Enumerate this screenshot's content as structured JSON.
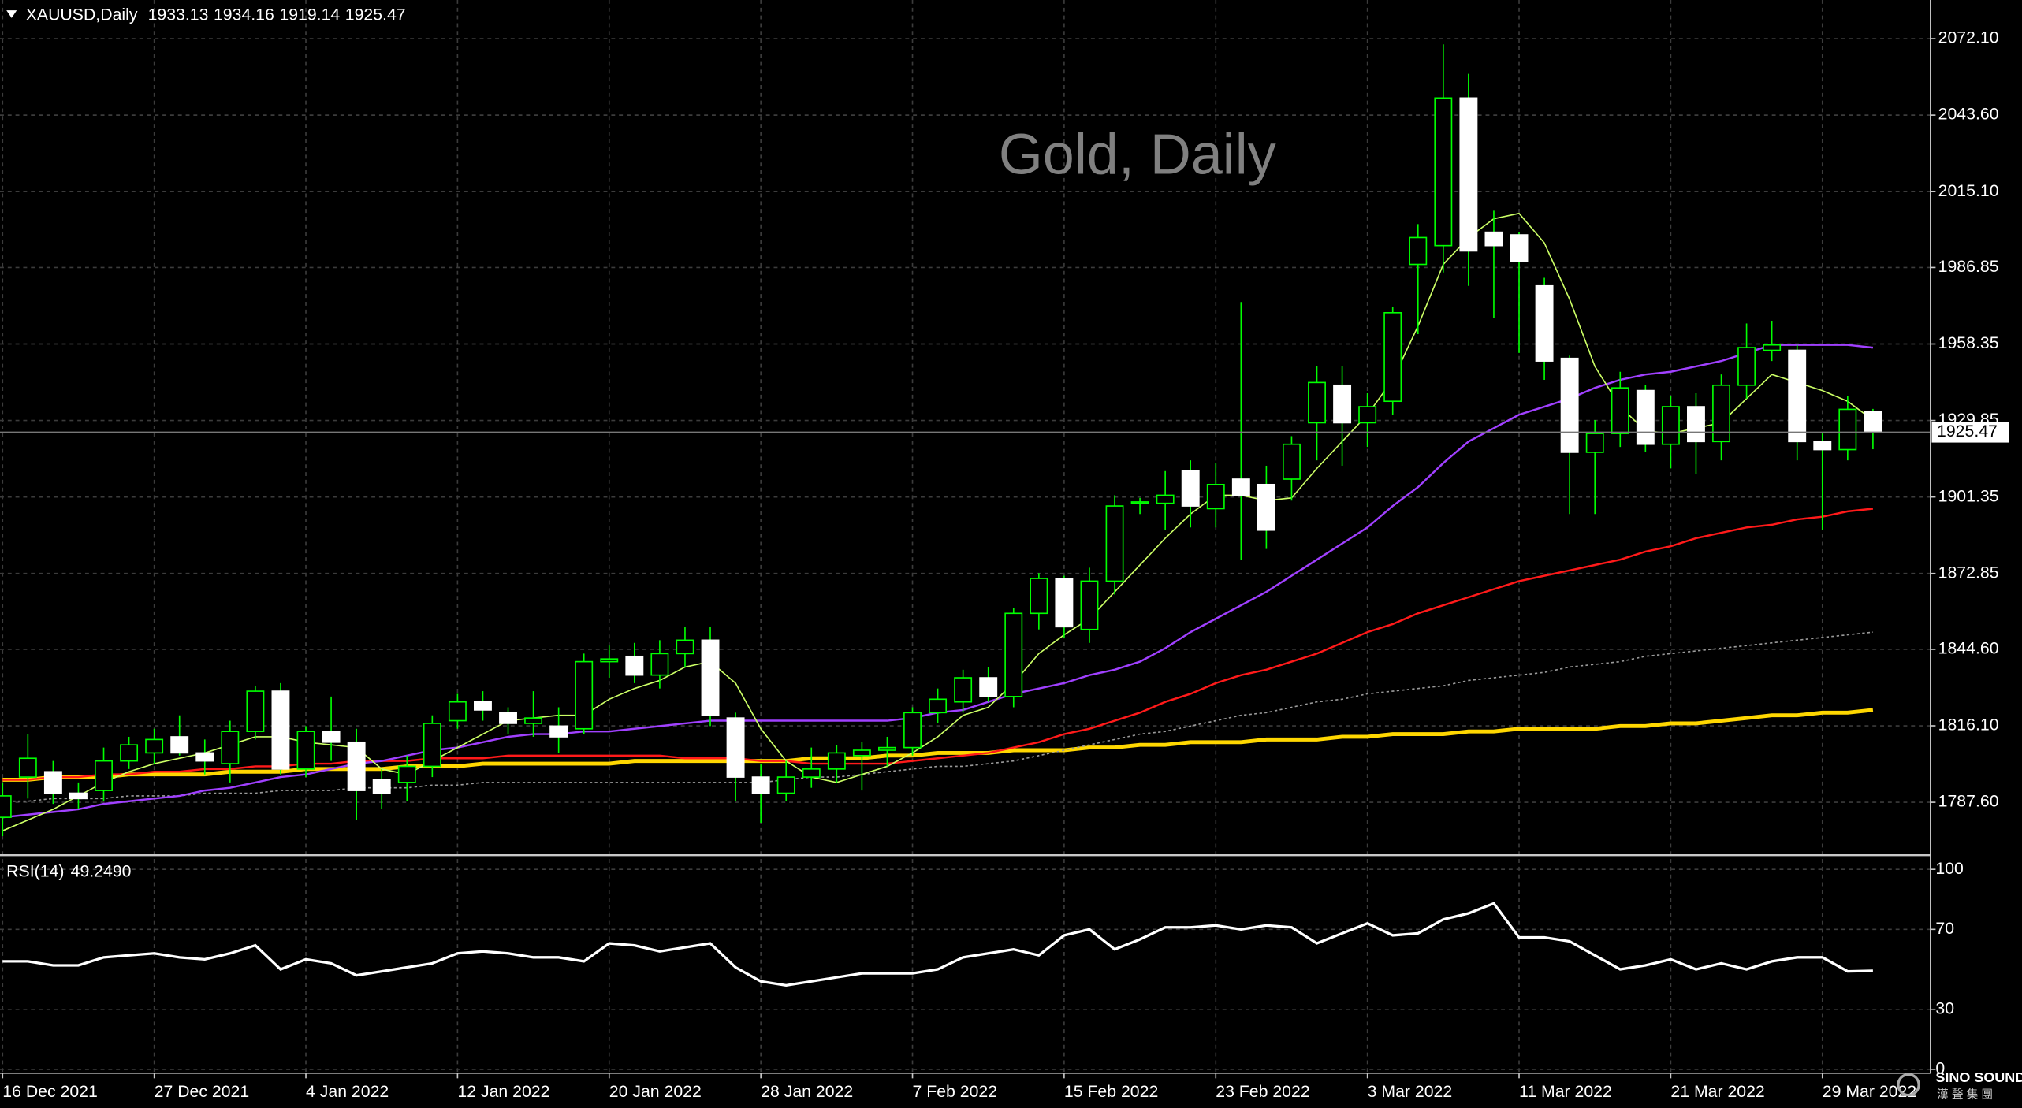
{
  "chart_data": {
    "type": "candlestick",
    "symbol": "XAUUSD,Daily",
    "title": "Gold, Daily",
    "categories": [
      "16 Dec 2021",
      null,
      null,
      null,
      null,
      null,
      "27 Dec 2021",
      null,
      null,
      null,
      null,
      null,
      "4 Jan 2022",
      null,
      null,
      null,
      null,
      null,
      "12 Jan 2022",
      null,
      null,
      null,
      null,
      null,
      "20 Jan 2022",
      null,
      null,
      null,
      null,
      null,
      "28 Jan 2022",
      null,
      null,
      null,
      null,
      null,
      "7 Feb 2022",
      null,
      null,
      null,
      null,
      null,
      "15 Feb 2022",
      null,
      null,
      null,
      null,
      null,
      "23 Feb 2022",
      null,
      null,
      null,
      null,
      null,
      "3 Mar 2022",
      null,
      null,
      null,
      null,
      null,
      "11 Mar 2022",
      null,
      null,
      null,
      null,
      null,
      "21 Mar 2022",
      null,
      null,
      null,
      null,
      null,
      "29 Mar 2022",
      null,
      null
    ],
    "open": [
      1782,
      1797,
      1799,
      1791,
      1792,
      1803,
      1806,
      1812,
      1806,
      1802,
      1814,
      1829,
      1800,
      1814,
      1810,
      1796,
      1795,
      1801,
      1818,
      1825,
      1821,
      1817,
      1816,
      1815,
      1840,
      1842,
      1835,
      1843,
      1848,
      1819,
      1797,
      1791,
      1797,
      1800,
      1805,
      1807,
      1808,
      1821,
      1825,
      1834,
      1827,
      1858,
      1871,
      1852,
      1870,
      1899,
      1899,
      1911,
      1897,
      1908,
      1906,
      1908,
      1929,
      1943,
      1929,
      1937,
      1988,
      1995,
      2050,
      2000,
      1999,
      1980,
      1953,
      1918,
      1925,
      1941,
      1921,
      1935,
      1922,
      1943,
      1956,
      1956,
      1922,
      1919,
      1933.13
    ],
    "high": [
      1795,
      1813,
      1803,
      1795,
      1808,
      1812,
      1815,
      1820,
      1811,
      1818,
      1831,
      1832,
      1816,
      1827,
      1815,
      1800,
      1805,
      1820,
      1828,
      1829,
      1823,
      1829,
      1823,
      1843,
      1846,
      1847,
      1848,
      1853,
      1853,
      1821,
      1802,
      1803,
      1808,
      1809,
      1810,
      1812,
      1823,
      1830,
      1837,
      1838,
      1860,
      1873,
      1872,
      1875,
      1902,
      1901,
      1911,
      1915,
      1914,
      1974,
      1913,
      1924,
      1950,
      1950,
      1940,
      1972,
      2003,
      2070,
      2059,
      2008,
      2000,
      1983,
      1954,
      1930,
      1948,
      1943,
      1939,
      1940,
      1947,
      1966,
      1967,
      1958,
      1925,
      1939,
      1934.16
    ],
    "low": [
      1775,
      1789,
      1787,
      1785,
      1788,
      1800,
      1802,
      1805,
      1798,
      1795,
      1811,
      1798,
      1797,
      1803,
      1781,
      1785,
      1788,
      1797,
      1815,
      1818,
      1813,
      1812,
      1806,
      1813,
      1834,
      1832,
      1830,
      1838,
      1816,
      1788,
      1780,
      1788,
      1793,
      1795,
      1792,
      1801,
      1805,
      1817,
      1821,
      1825,
      1823,
      1852,
      1849,
      1847,
      1865,
      1895,
      1889,
      1890,
      1890,
      1878,
      1882,
      1900,
      1915,
      1913,
      1920,
      1932,
      1962,
      1985,
      1980,
      1968,
      1955,
      1945,
      1895,
      1895,
      1920,
      1918,
      1912,
      1910,
      1915,
      1938,
      1952,
      1915,
      1889,
      1915,
      1919.14
    ],
    "close": [
      1790,
      1804,
      1791,
      1789,
      1803,
      1809,
      1811,
      1806,
      1803,
      1814,
      1829,
      1800,
      1814,
      1810,
      1792,
      1791,
      1801,
      1817,
      1825,
      1822,
      1817,
      1819,
      1812,
      1840,
      1841,
      1835,
      1843,
      1848,
      1820,
      1797,
      1791,
      1797,
      1800,
      1806,
      1807,
      1808,
      1821,
      1826,
      1834,
      1827,
      1858,
      1871,
      1853,
      1870,
      1898,
      1899.5,
      1902,
      1898,
      1906,
      1902,
      1889,
      1921,
      1944,
      1929,
      1935,
      1970,
      1998,
      2050,
      1993,
      1995,
      1989,
      1952,
      1918,
      1925,
      1942,
      1921,
      1935,
      1922,
      1943,
      1957,
      1958,
      1922,
      1919,
      1934,
      1925.47
    ],
    "bull_color": "#00ff00",
    "bear_color": "#ffffff",
    "ylim": [
      1767.9,
      2086.5
    ],
    "yticks": [
      {
        "value": 2072.1,
        "label": "2072.10"
      },
      {
        "value": 2043.6,
        "label": "2043.60"
      },
      {
        "value": 2015.1,
        "label": "2015.10"
      },
      1986.85,
      1958.35,
      1929.85,
      1901.35,
      1872.85,
      {
        "value": 1844.6,
        "label": "1844.60"
      },
      {
        "value": 1816.1,
        "label": "1816.10"
      },
      {
        "value": 1787.6,
        "label": "1787.60"
      }
    ],
    "grid": true,
    "series": [
      {
        "color": "#ffd700",
        "width": 3,
        "values": [
          1796,
          1796,
          1797,
          1797,
          1797,
          1798,
          1798,
          1798,
          1798,
          1799,
          1799,
          1799,
          1800,
          1800,
          1800,
          1800,
          1801,
          1801,
          1801,
          1802,
          1802,
          1802,
          1802,
          1802,
          1802,
          1803,
          1803,
          1803,
          1803,
          1803,
          1803,
          1803,
          1804,
          1804,
          1804,
          1805,
          1805,
          1806,
          1806,
          1806,
          1807,
          1807,
          1807,
          1808,
          1808,
          1809,
          1809,
          1810,
          1810,
          1810,
          1811,
          1811,
          1811,
          1812,
          1812,
          1813,
          1813,
          1813,
          1814,
          1814,
          1815,
          1815,
          1815,
          1815,
          1816,
          1816,
          1817,
          1817,
          1818,
          1819,
          1820,
          1820,
          1821,
          1821,
          1822
        ]
      },
      {
        "color": "#9a9a9a",
        "width": 1,
        "dashed": true,
        "values": [
          1788,
          1788,
          1789,
          1789,
          1789,
          1790,
          1790,
          1790,
          1791,
          1791,
          1791,
          1792,
          1792,
          1792,
          1793,
          1793,
          1793,
          1794,
          1794,
          1795,
          1795,
          1795,
          1795,
          1795,
          1795,
          1795,
          1795,
          1795,
          1795,
          1795,
          1795,
          1796,
          1797,
          1797,
          1798,
          1799,
          1800,
          1801,
          1801,
          1802,
          1803,
          1805,
          1807,
          1809,
          1811,
          1813,
          1814,
          1816,
          1818,
          1820,
          1821,
          1823,
          1825,
          1826,
          1828,
          1829,
          1830,
          1831,
          1833,
          1834,
          1835,
          1836,
          1838,
          1839,
          1840,
          1842,
          1843,
          1844,
          1845,
          1846,
          1847,
          1848,
          1849,
          1850,
          1851
        ]
      },
      {
        "color": "#ff1a1a",
        "width": 1.5,
        "values": [
          1796,
          1796,
          1797,
          1797,
          1798,
          1798,
          1799,
          1799,
          1800,
          1800,
          1801,
          1801,
          1802,
          1802,
          1803,
          1803,
          1803,
          1804,
          1804,
          1804,
          1805,
          1805,
          1805,
          1805,
          1805,
          1805,
          1805,
          1804,
          1804,
          1804,
          1803,
          1803,
          1802,
          1802,
          1802,
          1802,
          1803,
          1804,
          1805,
          1806,
          1808,
          1810,
          1813,
          1815,
          1818,
          1821,
          1825,
          1828,
          1832,
          1835,
          1837,
          1840,
          1843,
          1847,
          1851,
          1854,
          1858,
          1861,
          1864,
          1867,
          1870,
          1872,
          1874,
          1876,
          1878,
          1881,
          1883,
          1886,
          1888,
          1890,
          1891,
          1893,
          1894,
          1896,
          1897
        ]
      },
      {
        "color": "#a040ff",
        "width": 1.5,
        "values": [
          1782,
          1783,
          1784,
          1785,
          1787,
          1788,
          1789,
          1790,
          1792,
          1793,
          1795,
          1797,
          1798,
          1800,
          1802,
          1803,
          1805,
          1807,
          1808,
          1810,
          1812,
          1813,
          1813,
          1814,
          1814,
          1815,
          1816,
          1817,
          1818,
          1818,
          1818,
          1818,
          1818,
          1818,
          1818,
          1818,
          1819,
          1821,
          1822,
          1825,
          1828,
          1830,
          1832,
          1835,
          1837,
          1840,
          1845,
          1851,
          1856,
          1861,
          1866,
          1872,
          1878,
          1884,
          1890,
          1898,
          1905,
          1914,
          1922,
          1927,
          1932,
          1935,
          1938,
          1942,
          1945,
          1947,
          1948,
          1950,
          1952,
          1955,
          1958,
          1958,
          1958,
          1958,
          1957
        ]
      },
      {
        "color": "#ccff66",
        "width": 1,
        "values": [
          1777,
          1781,
          1785,
          1790,
          1795,
          1799,
          1802,
          1804,
          1806,
          1809,
          1812,
          1812,
          1810,
          1809,
          1808,
          1800,
          1798,
          1803,
          1808,
          1813,
          1818,
          1819,
          1820,
          1820,
          1826,
          1830,
          1833,
          1838,
          1840,
          1832,
          1815,
          1803,
          1797,
          1795,
          1798,
          1801,
          1806,
          1812,
          1820,
          1823,
          1832,
          1843,
          1850,
          1856,
          1866,
          1876,
          1886,
          1895,
          1902,
          1902,
          1900,
          1901,
          1912,
          1922,
          1932,
          1945,
          1965,
          1988,
          1998,
          2005,
          2007,
          1996,
          1975,
          1950,
          1935,
          1926,
          1925,
          1927,
          1929,
          1938,
          1947,
          1944,
          1941,
          1937,
          1930
        ]
      }
    ],
    "rsi": {
      "type": "line",
      "name": "RSI(14)",
      "color": "#ffffff",
      "values": [
        54,
        54,
        52,
        52,
        56,
        57,
        58,
        56,
        55,
        58,
        62,
        50,
        55,
        53,
        47,
        49,
        51,
        53,
        58,
        59,
        58,
        56,
        56,
        54,
        63,
        62,
        59,
        61,
        63,
        51,
        44,
        42,
        44,
        46,
        48,
        48,
        48,
        50,
        56,
        58,
        60,
        57,
        67,
        70,
        60,
        65,
        71,
        71,
        72,
        70,
        72,
        71,
        63,
        68,
        73,
        67,
        68,
        75,
        78,
        83,
        66,
        66,
        64,
        57,
        50,
        52,
        55,
        50,
        53,
        50,
        54,
        56,
        56,
        49,
        49.249
      ],
      "value_labels": [
        null,
        null,
        null,
        null,
        null,
        null,
        null,
        null,
        null,
        null,
        null,
        null,
        null,
        null,
        null,
        null,
        null,
        null,
        null,
        null,
        null,
        null,
        null,
        null,
        null,
        null,
        null,
        null,
        null,
        null,
        null,
        null,
        null,
        null,
        null,
        null,
        null,
        null,
        null,
        null,
        null,
        null,
        null,
        null,
        null,
        null,
        null,
        null,
        null,
        null,
        null,
        null,
        null,
        null,
        null,
        null,
        null,
        null,
        null,
        null,
        null,
        null,
        null,
        null,
        null,
        null,
        null,
        null,
        null,
        null,
        null,
        null,
        null,
        null,
        "49.2490"
      ],
      "ylim": [
        0,
        100
      ],
      "yticks": [
        100,
        70,
        30,
        0
      ]
    },
    "watermark": "SINO SOUND",
    "watermark_sub": "漢 聲 集 團"
  }
}
